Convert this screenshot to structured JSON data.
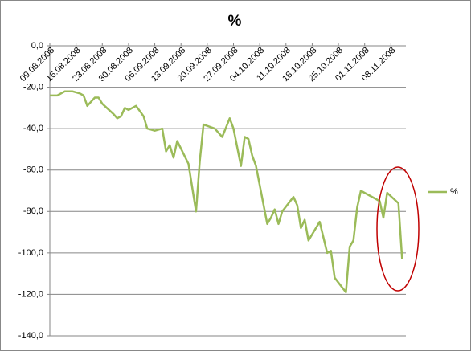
{
  "chart_data": {
    "type": "line",
    "title": "%",
    "x": [
      "09.08.2008",
      "11.08.2008",
      "13.08.2008",
      "15.08.2008",
      "17.08.2008",
      "18.08.2008",
      "19.08.2008",
      "21.08.2008",
      "22.08.2008",
      "23.08.2008",
      "26.08.2008",
      "27.08.2008",
      "28.08.2008",
      "29.08.2008",
      "30.08.2008",
      "01.09.2008",
      "03.09.2008",
      "04.09.2008",
      "06.09.2008",
      "08.09.2008",
      "09.09.2008",
      "10.09.2008",
      "11.09.2008",
      "12.09.2008",
      "15.09.2008",
      "17.09.2008",
      "18.09.2008",
      "19.09.2008",
      "22.09.2008",
      "24.09.2008",
      "26.09.2008",
      "27.09.2008",
      "29.09.2008",
      "30.09.2008",
      "01.10.2008",
      "02.10.2008",
      "03.10.2008",
      "06.10.2008",
      "07.10.2008",
      "08.10.2008",
      "09.10.2008",
      "10.10.2008",
      "13.10.2008",
      "14.10.2008",
      "15.10.2008",
      "16.10.2008",
      "17.10.2008",
      "20.10.2008",
      "22.10.2008",
      "23.10.2008",
      "24.10.2008",
      "27.10.2008",
      "28.10.2008",
      "29.10.2008",
      "30.10.2008",
      "31.10.2008",
      "01.11.2008",
      "05.11.2008",
      "06.11.2008",
      "07.11.2008",
      "10.11.2008",
      "11.11.2008"
    ],
    "series": [
      {
        "name": "%",
        "color": "#9bbb59",
        "values": [
          -24,
          -24,
          -22,
          -22,
          -23,
          -24,
          -29,
          -25,
          -25,
          -28,
          -33,
          -35,
          -34,
          -30,
          -31,
          -29,
          -34,
          -40,
          -41,
          -40,
          -51,
          -48,
          -54,
          -46,
          -57,
          -80,
          -56,
          -38,
          -40,
          -44,
          -35,
          -40,
          -58,
          -44,
          -45,
          -53,
          -58,
          -86,
          -83,
          -79,
          -86,
          -80,
          -73,
          -77,
          -88,
          -84,
          -94,
          -85,
          -100,
          -99,
          -112,
          -119,
          -97,
          -94,
          -78,
          -70,
          -71,
          -75,
          -83,
          -71,
          -76,
          -103
        ]
      }
    ],
    "xlim": [
      "09.08.2008",
      "12.11.2008"
    ],
    "xticks": [
      "09.08.2008",
      "16.08.2008",
      "23.08.2008",
      "30.08.2008",
      "06.09.2008",
      "13.09.2008",
      "20.09.2008",
      "27.09.2008",
      "04.10.2008",
      "11.10.2008",
      "18.10.2008",
      "25.10.2008",
      "01.11.2008",
      "08.11.2008"
    ],
    "ylim": [
      -140,
      0
    ],
    "yticks": [
      {
        "value": -140,
        "label": "-140,0"
      },
      {
        "value": -120,
        "label": "-120,0"
      },
      {
        "value": -100,
        "label": "-100,0"
      },
      {
        "value": -80,
        "label": "-80,0"
      },
      {
        "value": -60,
        "label": "-60,0"
      },
      {
        "value": -40,
        "label": "-40,0"
      },
      {
        "value": -20,
        "label": "-20,0"
      },
      {
        "value": 0,
        "label": "0,0"
      }
    ],
    "grid": true,
    "legend": "right"
  }
}
